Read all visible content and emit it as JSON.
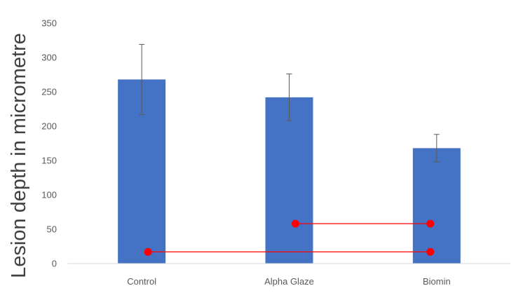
{
  "chart_data": {
    "type": "bar",
    "title": "",
    "xlabel": "",
    "ylabel": "Lesion depth in micrometre",
    "ylim": [
      0,
      350
    ],
    "yticks": [
      0,
      50,
      100,
      150,
      200,
      250,
      300,
      350
    ],
    "grid": false,
    "categories": [
      "Control",
      "Alpha Glaze",
      "Biomin"
    ],
    "series": [
      {
        "values": [
          268,
          242,
          168
        ],
        "error": [
          51,
          34,
          20
        ],
        "color": "#4472c4"
      }
    ],
    "significance_brackets": [
      {
        "from": "Control",
        "to": "Biomin",
        "y": 17,
        "color": "#ff0000"
      },
      {
        "from": "Alpha Glaze",
        "to": "Biomin",
        "y": 58,
        "color": "#ff0000"
      }
    ]
  }
}
